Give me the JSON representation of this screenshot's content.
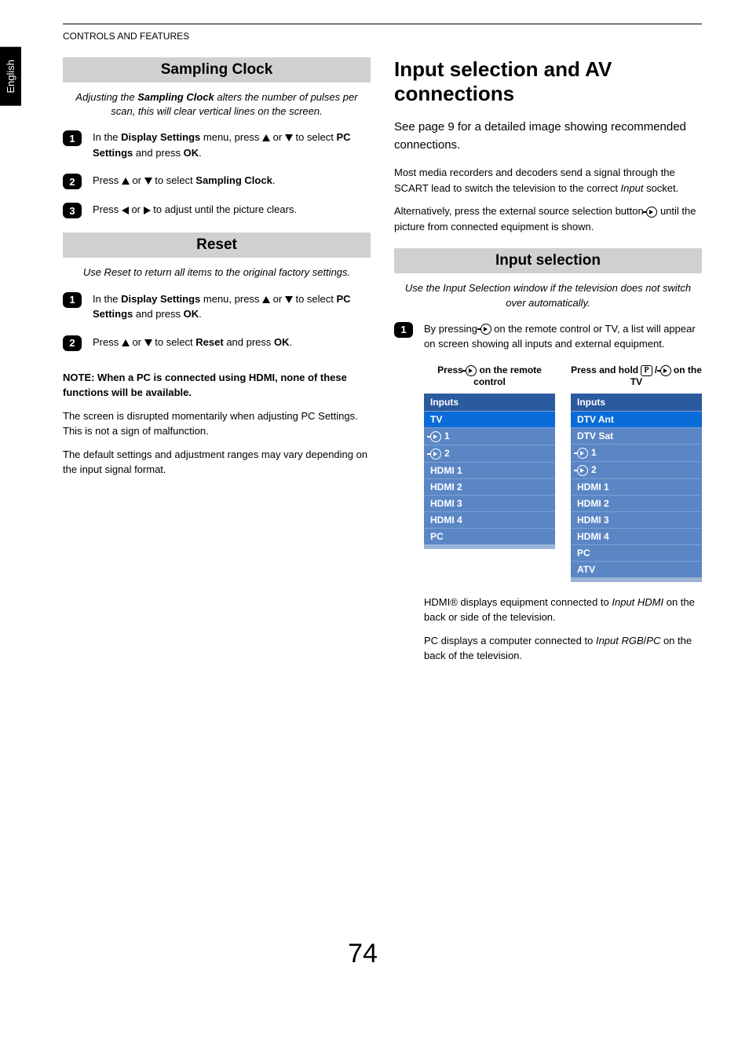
{
  "language_tab": "English",
  "header": "CONTROLS AND FEATURES",
  "page_number": "74",
  "left": {
    "section1_title": "Sampling Clock",
    "section1_intro_a": "Adjusting the ",
    "section1_intro_b": "Sampling Clock",
    "section1_intro_c": " alters the number of pulses per scan, this will clear vertical lines on the screen.",
    "s1_step1_a": "In the ",
    "s1_step1_b": "Display Settings",
    "s1_step1_c": " menu, press ",
    "s1_step1_d": " or ",
    "s1_step1_e": " to select ",
    "s1_step1_f": "PC Settings",
    "s1_step1_g": " and press ",
    "s1_step1_h": "OK",
    "s1_step1_i": ".",
    "s1_step2_a": "Press ",
    "s1_step2_b": " or ",
    "s1_step2_c": " to select ",
    "s1_step2_d": "Sampling Clock",
    "s1_step2_e": ".",
    "s1_step3_a": "Press ",
    "s1_step3_b": " or ",
    "s1_step3_c": " to adjust until the picture clears.",
    "section2_title": "Reset",
    "section2_intro": "Use Reset to return all items to the original factory settings.",
    "s2_step1_a": "In the ",
    "s2_step1_b": "Display Settings",
    "s2_step1_c": " menu, press ",
    "s2_step1_d": " or ",
    "s2_step1_e": " to select ",
    "s2_step1_f": "PC Settings",
    "s2_step1_g": " and press ",
    "s2_step1_h": "OK",
    "s2_step1_i": ".",
    "s2_step2_a": "Press ",
    "s2_step2_b": " or ",
    "s2_step2_c": " to select ",
    "s2_step2_d": "Reset",
    "s2_step2_e": " and press ",
    "s2_step2_f": "OK",
    "s2_step2_g": ".",
    "note": "NOTE: When a PC is connected using HDMI, none of these functions will be available.",
    "para1": "The screen is disrupted momentarily when adjusting PC Settings. This is not a sign of malfunction.",
    "para2": "The default settings and adjustment ranges may vary depending on the input signal format."
  },
  "right": {
    "h1": "Input selection and AV connections",
    "lead": "See page 9 for a detailed image showing recommended connections.",
    "p1_a": "Most media recorders and decoders send a signal through the SCART lead to switch the television to the correct ",
    "p1_b": "Input",
    "p1_c": " socket.",
    "p2_a": "Alternatively, press the external source selection button ",
    "p2_b": " until the picture from connected equipment is shown.",
    "section_title": "Input selection",
    "section_intro": "Use the Input Selection window if the television does not switch over automatically.",
    "step1_a": "By pressing ",
    "step1_b": " on the remote control or TV, a list will appear on screen showing all inputs and external equipment.",
    "table_left_cap_a": "Press ",
    "table_left_cap_b": " on the remote control",
    "table_right_cap_a": "Press and hold ",
    "table_right_cap_b": " / ",
    "table_right_cap_c": " on the TV",
    "table_left": {
      "header": "Inputs",
      "rows": [
        "TV",
        "1",
        "2",
        "HDMI 1",
        "HDMI 2",
        "HDMI 3",
        "HDMI 4",
        "PC"
      ],
      "icon_rows": [
        1,
        2
      ],
      "selected_index": 0
    },
    "table_right": {
      "header": "Inputs",
      "rows": [
        "DTV Ant",
        "DTV Sat",
        "1",
        "2",
        "HDMI 1",
        "HDMI 2",
        "HDMI 3",
        "HDMI 4",
        "PC",
        "ATV"
      ],
      "icon_rows": [
        2,
        3
      ],
      "selected_index": 0
    },
    "post1_a": "HDMI® displays equipment connected to ",
    "post1_b": "Input HDMI",
    "post1_c": " on the back or side of the television.",
    "post2_a": "PC displays a computer connected to ",
    "post2_b": "Input RGB",
    "post2_c": "/",
    "post2_d": "PC",
    "post2_e": " on the back of the television."
  },
  "colors": {
    "bar_bg": "#d0d0d0",
    "step_bg": "#000000",
    "table_header_bg": "#2b5a9e",
    "table_selected_bg": "#0b6bd8",
    "table_row_bg": "#5b86c5",
    "table_divider": "#7ba0d0"
  }
}
